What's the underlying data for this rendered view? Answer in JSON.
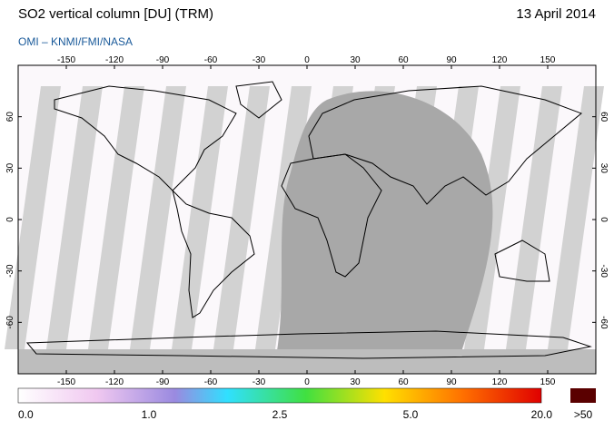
{
  "header": {
    "title": "SO2 vertical column [DU] (TRM)",
    "date": "13 April 2014",
    "source": "OMI  –  KNMI/FMI/NASA"
  },
  "map": {
    "lon_range": [
      -180,
      180
    ],
    "lat_range": [
      -90,
      90
    ],
    "lon_ticks": [
      -150,
      -120,
      -90,
      -60,
      -30,
      0,
      30,
      60,
      90,
      120,
      150
    ],
    "lat_ticks": [
      60,
      30,
      0,
      -30,
      -60
    ]
  },
  "colorbar": {
    "labels": [
      "0.0",
      "1.0",
      "2.5",
      "5.0",
      "20.0"
    ],
    "over": ">50"
  }
}
